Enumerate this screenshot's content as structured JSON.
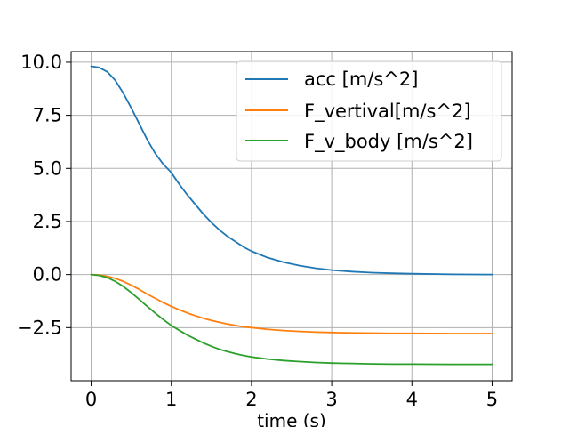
{
  "chart_data": {
    "type": "line",
    "title": "",
    "xlabel": "time (s)",
    "ylabel": "",
    "xlim": [
      -0.25,
      5.25
    ],
    "ylim": [
      -5.0,
      10.5
    ],
    "grid": true,
    "legend_position": "top-right",
    "x_ticks": [
      0,
      1,
      2,
      3,
      4,
      5
    ],
    "x_tick_labels": [
      "0",
      "1",
      "2",
      "3",
      "4",
      "5"
    ],
    "y_ticks": [
      10.0,
      7.5,
      5.0,
      2.5,
      0.0,
      -2.5
    ],
    "y_tick_labels": [
      "10.0",
      "7.5",
      "5.0",
      "2.5",
      "0.0",
      "−2.5"
    ],
    "x": [
      0,
      0.1,
      0.2,
      0.3,
      0.4,
      0.5,
      0.6,
      0.7,
      0.8,
      0.9,
      1.0,
      1.1,
      1.2,
      1.3,
      1.4,
      1.5,
      1.6,
      1.7,
      1.8,
      1.9,
      2.0,
      2.2,
      2.4,
      2.6,
      2.8,
      3.0,
      3.25,
      3.5,
      3.75,
      4.0,
      4.5,
      5.0
    ],
    "series": [
      {
        "name": "acc [m/s^2]",
        "color": "#1f77b4",
        "values": [
          9.81,
          9.75,
          9.55,
          9.15,
          8.55,
          7.85,
          7.1,
          6.35,
          5.7,
          5.2,
          4.8,
          4.25,
          3.75,
          3.3,
          2.85,
          2.45,
          2.1,
          1.8,
          1.55,
          1.3,
          1.1,
          0.8,
          0.58,
          0.42,
          0.3,
          0.21,
          0.14,
          0.09,
          0.06,
          0.04,
          0.01,
          0.0
        ]
      },
      {
        "name": "F_vertival[m/s^2]",
        "color": "#ff7f0e",
        "values": [
          0.0,
          -0.02,
          -0.08,
          -0.18,
          -0.32,
          -0.5,
          -0.7,
          -0.92,
          -1.12,
          -1.32,
          -1.5,
          -1.66,
          -1.81,
          -1.94,
          -2.06,
          -2.16,
          -2.25,
          -2.33,
          -2.4,
          -2.46,
          -2.5,
          -2.58,
          -2.64,
          -2.68,
          -2.71,
          -2.73,
          -2.75,
          -2.76,
          -2.77,
          -2.77,
          -2.78,
          -2.78
        ]
      },
      {
        "name": "F_v_body [m/s^2]",
        "color": "#2ca02c",
        "values": [
          0.0,
          -0.04,
          -0.14,
          -0.32,
          -0.56,
          -0.85,
          -1.17,
          -1.5,
          -1.82,
          -2.12,
          -2.4,
          -2.63,
          -2.85,
          -3.04,
          -3.22,
          -3.38,
          -3.52,
          -3.63,
          -3.73,
          -3.81,
          -3.88,
          -3.98,
          -4.05,
          -4.1,
          -4.14,
          -4.17,
          -4.19,
          -4.21,
          -4.22,
          -4.22,
          -4.23,
          -4.23
        ]
      }
    ]
  }
}
